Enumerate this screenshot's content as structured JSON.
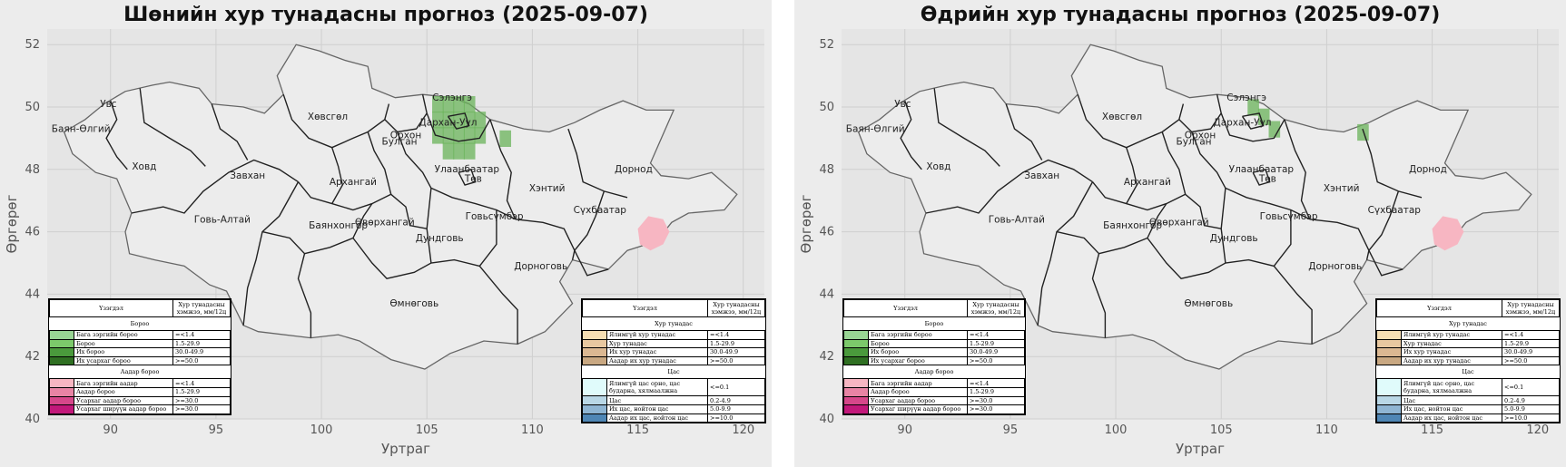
{
  "panels": [
    {
      "title": "Шөнийн хур тунадасны прогноз (2025-09-07)",
      "green_cells": [
        [
          105.5,
          50.1
        ],
        [
          106,
          50.1
        ],
        [
          106.5,
          50.1
        ],
        [
          107,
          50.1
        ],
        [
          105.5,
          49.6
        ],
        [
          106,
          49.6
        ],
        [
          106.5,
          49.6
        ],
        [
          107,
          49.6
        ],
        [
          107.5,
          49.6
        ],
        [
          105.5,
          49.1
        ],
        [
          106,
          49.1
        ],
        [
          106.5,
          49.1
        ],
        [
          107,
          49.1
        ],
        [
          107.5,
          49.1
        ],
        [
          106,
          48.6
        ],
        [
          106.5,
          48.6
        ],
        [
          107,
          48.6
        ],
        [
          108.7,
          49.0
        ]
      ],
      "pink_zone": "east"
    },
    {
      "title": "Өдрийн хур тунадасны прогноз (2025-09-07)",
      "green_cells": [
        [
          106.5,
          50.0
        ],
        [
          107,
          49.7
        ],
        [
          107.5,
          49.3
        ],
        [
          111.7,
          49.2
        ]
      ],
      "pink_zone": "east"
    }
  ],
  "axes": {
    "xlabel": "Уртраг",
    "ylabel": "Өргөрөг",
    "xlim": [
      87,
      121
    ],
    "ylim": [
      40,
      52.5
    ],
    "xticks": [
      "90",
      "95",
      "100",
      "105",
      "110",
      "115",
      "120"
    ],
    "yticks": [
      "40",
      "42",
      "44",
      "46",
      "48",
      "50",
      "52"
    ]
  },
  "regions": [
    {
      "name": "Увс",
      "lon": 89.9,
      "lat": 50.0
    },
    {
      "name": "Баян-Өлгий",
      "lon": 88.6,
      "lat": 49.2
    },
    {
      "name": "Ховд",
      "lon": 91.6,
      "lat": 48.0
    },
    {
      "name": "Завхан",
      "lon": 96.5,
      "lat": 47.7
    },
    {
      "name": "Хөвсгөл",
      "lon": 100.3,
      "lat": 49.6
    },
    {
      "name": "Говь-Алтай",
      "lon": 95.3,
      "lat": 46.3
    },
    {
      "name": "Архангай",
      "lon": 101.5,
      "lat": 47.5
    },
    {
      "name": "Булган",
      "lon": 103.7,
      "lat": 48.8
    },
    {
      "name": "Орхон",
      "lon": 104.0,
      "lat": 49.0
    },
    {
      "name": "Сэлэнгэ",
      "lon": 106.2,
      "lat": 50.2
    },
    {
      "name": "Дархан-Уул",
      "lon": 106.0,
      "lat": 49.4
    },
    {
      "name": "Улаанбаатар",
      "lon": 106.9,
      "lat": 47.9
    },
    {
      "name": "Төв",
      "lon": 107.2,
      "lat": 47.6
    },
    {
      "name": "Хэнтий",
      "lon": 110.7,
      "lat": 47.3
    },
    {
      "name": "Дорнод",
      "lon": 114.8,
      "lat": 47.9
    },
    {
      "name": "Сүхбаатар",
      "lon": 113.2,
      "lat": 46.6
    },
    {
      "name": "Баянхонгор",
      "lon": 100.8,
      "lat": 46.1
    },
    {
      "name": "Өвөрхангай",
      "lon": 103.0,
      "lat": 46.2
    },
    {
      "name": "Говьсүмбэр",
      "lon": 108.2,
      "lat": 46.4
    },
    {
      "name": "Дундговь",
      "lon": 105.6,
      "lat": 45.7
    },
    {
      "name": "Дорноговь",
      "lon": 110.4,
      "lat": 44.8
    },
    {
      "name": "Өмнөговь",
      "lon": 104.4,
      "lat": 43.6
    }
  ],
  "legend_left": {
    "header_phenomenon": "Үзэгдэл",
    "header_amount": "Хур тунадасны хэмжээ, мм/12ц",
    "sections": [
      {
        "title": "Бороо",
        "rows": [
          {
            "label": "Бага зэргийн бороо",
            "value": "=<1.4",
            "color": "#99d594"
          },
          {
            "label": "Бороо",
            "value": "1.5-29.9",
            "color": "#7cc96b"
          },
          {
            "label": "Их бороо",
            "value": "30.0-49.9",
            "color": "#4a9a3c"
          },
          {
            "label": "Их усархаг бороо",
            "value": ">=50.0",
            "color": "#2f6f22"
          }
        ]
      },
      {
        "title": "Аадар бороо",
        "rows": [
          {
            "label": "Бага зэргийн аадар",
            "value": "=<1.4",
            "color": "#f7b6c2"
          },
          {
            "label": "Аадар бороо",
            "value": "1.5-29.9",
            "color": "#e884a4"
          },
          {
            "label": "Усархаг аадар бороо",
            "value": ">=30.0",
            "color": "#d6478a"
          },
          {
            "label": "Усархаг ширүүн аадар бороо",
            "value": ">=30.0",
            "color": "#c2187a"
          }
        ]
      }
    ]
  },
  "legend_right": {
    "header_phenomenon": "Үзэгдэл",
    "header_amount": "Хур тунадасны хэмжээ, мм/12ц",
    "sections": [
      {
        "title": "Хур тунадас",
        "rows": [
          {
            "label": "Ялимгүй хур тунадас",
            "value": "=<1.4",
            "color": "#f5deb3"
          },
          {
            "label": "Хур тунадас",
            "value": "1.5-29.9",
            "color": "#e8c8a0"
          },
          {
            "label": "Их хур тунадас",
            "value": "30.0-49.9",
            "color": "#dbb892"
          },
          {
            "label": "Аадар их хур тунадас",
            "value": ">=50.0",
            "color": "#c9a882"
          }
        ]
      },
      {
        "title": "Цас",
        "rows": [
          {
            "label": "Ялимгүй цас орно, цас бударна, хялмаалжна",
            "value": "<=0.1",
            "color": "#e0fbfb",
            "tall": true
          },
          {
            "label": "Цас",
            "value": "0.2-4.9",
            "color": "#b9d7e6"
          },
          {
            "label": "Их цас, нойтон цас",
            "value": "5.0-9.9",
            "color": "#8fb5d3"
          },
          {
            "label": "Аадар их цас, нойтон цас",
            "value": ">=10.0",
            "color": "#4f86b5"
          }
        ]
      }
    ]
  }
}
